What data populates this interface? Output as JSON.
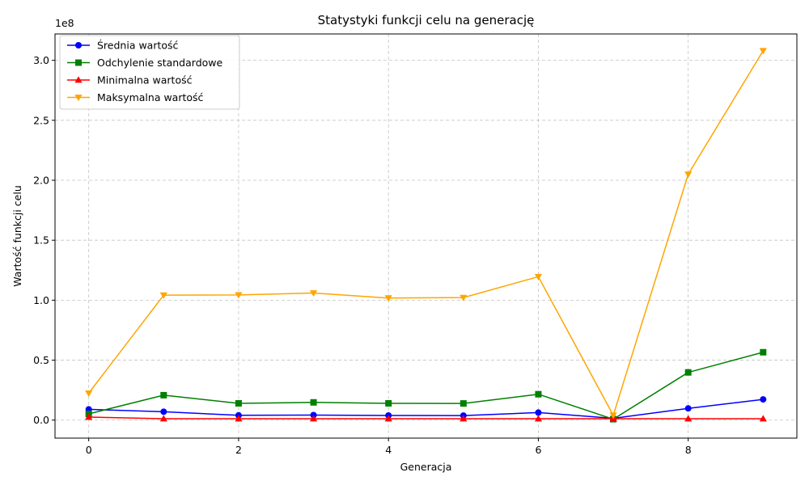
{
  "chart_data": {
    "type": "line",
    "title": "Statystyki funkcji celu na generację",
    "xlabel": "Generacja",
    "ylabel": "Wartość funkcji celu",
    "y_offset_label": "1e8",
    "y_scale_factor": 100000000,
    "x": [
      0,
      1,
      2,
      3,
      4,
      5,
      6,
      7,
      8,
      9
    ],
    "xlim": [
      -0.45,
      9.45
    ],
    "ylim": [
      -0.15,
      3.22
    ],
    "x_ticks": [
      0,
      2,
      4,
      6,
      8
    ],
    "y_ticks": [
      0.0,
      0.5,
      1.0,
      1.5,
      2.0,
      2.5,
      3.0
    ],
    "y_tick_labels": [
      "0.0",
      "0.5",
      "1.0",
      "1.5",
      "2.0",
      "2.5",
      "3.0"
    ],
    "grid": true,
    "legend_position": "top-left",
    "series": [
      {
        "name": "Średnia wartość",
        "color": "#0000ff",
        "marker": "circle",
        "values": [
          0.09,
          0.07,
          0.04,
          0.042,
          0.039,
          0.038,
          0.063,
          0.015,
          0.098,
          0.173
        ]
      },
      {
        "name": "Odchylenie standardowe",
        "color": "#008000",
        "marker": "square",
        "values": [
          0.052,
          0.208,
          0.14,
          0.148,
          0.14,
          0.139,
          0.216,
          0.008,
          0.398,
          0.566
        ]
      },
      {
        "name": "Minimalna wartość",
        "color": "#ff0000",
        "marker": "triangle-up",
        "values": [
          0.025,
          0.012,
          0.012,
          0.012,
          0.012,
          0.012,
          0.012,
          0.012,
          0.012,
          0.012
        ]
      },
      {
        "name": "Maksymalna wartość",
        "color": "#ffa500",
        "marker": "triangle-down",
        "values": [
          0.225,
          1.042,
          1.044,
          1.06,
          1.018,
          1.022,
          1.196,
          0.04,
          2.05,
          3.08
        ]
      }
    ]
  }
}
